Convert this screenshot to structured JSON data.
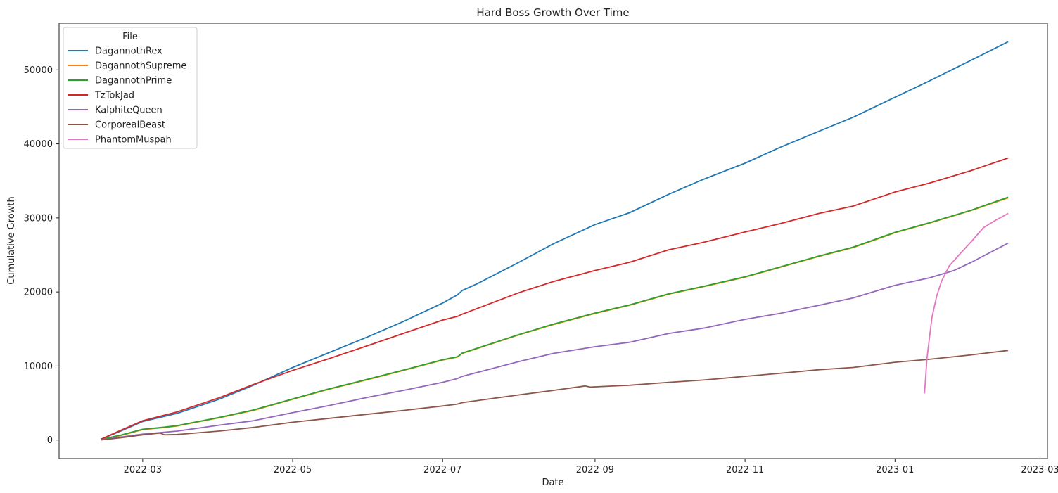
{
  "chart_data": {
    "type": "line",
    "title": "Hard Boss Growth Over Time",
    "xlabel": "Date",
    "ylabel": "Cumulative Growth",
    "x_type": "date",
    "xlim": [
      "2022-01-26",
      "2023-03-04"
    ],
    "ylim": [
      -2500,
      56300
    ],
    "x_ticks": [
      "2022-03-01",
      "2022-05-01",
      "2022-07-01",
      "2022-09-01",
      "2022-11-01",
      "2023-01-01",
      "2023-03-01"
    ],
    "x_tick_labels": [
      "2022-03",
      "2022-05",
      "2022-07",
      "2022-09",
      "2022-11",
      "2023-01",
      "2023-03"
    ],
    "y_ticks": [
      0,
      10000,
      20000,
      30000,
      40000,
      50000
    ],
    "y_tick_labels": [
      "0",
      "10000",
      "20000",
      "30000",
      "40000",
      "50000"
    ],
    "grid": false,
    "legend": {
      "title": "File",
      "position": "top-left"
    },
    "series": [
      {
        "name": "DagannothRex",
        "color": "#1f77b4",
        "points": [
          [
            "2022-02-12",
            100
          ],
          [
            "2022-02-20",
            1200
          ],
          [
            "2022-03-01",
            2500
          ],
          [
            "2022-03-15",
            3600
          ],
          [
            "2022-04-01",
            5500
          ],
          [
            "2022-04-15",
            7400
          ],
          [
            "2022-05-01",
            9800
          ],
          [
            "2022-05-15",
            11700
          ],
          [
            "2022-06-01",
            14000
          ],
          [
            "2022-06-15",
            16000
          ],
          [
            "2022-07-01",
            18500
          ],
          [
            "2022-07-07",
            19600
          ],
          [
            "2022-07-09",
            20200
          ],
          [
            "2022-07-15",
            21100
          ],
          [
            "2022-08-01",
            24000
          ],
          [
            "2022-08-15",
            26500
          ],
          [
            "2022-09-01",
            29100
          ],
          [
            "2022-09-15",
            30700
          ],
          [
            "2022-10-01",
            33200
          ],
          [
            "2022-10-15",
            35200
          ],
          [
            "2022-11-01",
            37400
          ],
          [
            "2022-11-15",
            39500
          ],
          [
            "2022-12-01",
            41700
          ],
          [
            "2022-12-15",
            43600
          ],
          [
            "2023-01-01",
            46300
          ],
          [
            "2023-01-15",
            48500
          ],
          [
            "2023-02-01",
            51300
          ],
          [
            "2023-02-16",
            53800
          ]
        ]
      },
      {
        "name": "DagannothSupreme",
        "color": "#ff7f0e",
        "points": [
          [
            "2022-02-12",
            50
          ],
          [
            "2022-02-20",
            600
          ],
          [
            "2022-03-01",
            1400
          ],
          [
            "2022-03-10",
            1700
          ],
          [
            "2022-03-15",
            1900
          ],
          [
            "2022-04-01",
            3000
          ],
          [
            "2022-04-15",
            4000
          ],
          [
            "2022-05-01",
            5500
          ],
          [
            "2022-05-15",
            6800
          ],
          [
            "2022-06-01",
            8200
          ],
          [
            "2022-06-15",
            9400
          ],
          [
            "2022-07-01",
            10800
          ],
          [
            "2022-07-07",
            11200
          ],
          [
            "2022-07-09",
            11700
          ],
          [
            "2022-08-01",
            14200
          ],
          [
            "2022-08-15",
            15600
          ],
          [
            "2022-09-01",
            17100
          ],
          [
            "2022-09-15",
            18200
          ],
          [
            "2022-10-01",
            19700
          ],
          [
            "2022-10-15",
            20700
          ],
          [
            "2022-11-01",
            22000
          ],
          [
            "2022-11-15",
            23300
          ],
          [
            "2022-12-01",
            24800
          ],
          [
            "2022-12-15",
            26000
          ],
          [
            "2023-01-01",
            28000
          ],
          [
            "2023-01-15",
            29300
          ],
          [
            "2023-02-01",
            31000
          ],
          [
            "2023-02-16",
            32700
          ]
        ]
      },
      {
        "name": "DagannothPrime",
        "color": "#2ca02c",
        "points": [
          [
            "2022-02-12",
            80
          ],
          [
            "2022-02-20",
            650
          ],
          [
            "2022-03-01",
            1450
          ],
          [
            "2022-03-10",
            1750
          ],
          [
            "2022-03-15",
            1950
          ],
          [
            "2022-04-01",
            3050
          ],
          [
            "2022-04-15",
            4050
          ],
          [
            "2022-05-01",
            5550
          ],
          [
            "2022-05-15",
            6850
          ],
          [
            "2022-06-01",
            8250
          ],
          [
            "2022-06-15",
            9450
          ],
          [
            "2022-07-01",
            10850
          ],
          [
            "2022-07-07",
            11250
          ],
          [
            "2022-07-09",
            11750
          ],
          [
            "2022-08-01",
            14250
          ],
          [
            "2022-08-15",
            15650
          ],
          [
            "2022-09-01",
            17150
          ],
          [
            "2022-09-15",
            18250
          ],
          [
            "2022-10-01",
            19750
          ],
          [
            "2022-10-15",
            20750
          ],
          [
            "2022-11-01",
            22050
          ],
          [
            "2022-11-15",
            23350
          ],
          [
            "2022-12-01",
            24850
          ],
          [
            "2022-12-15",
            26050
          ],
          [
            "2023-01-01",
            28050
          ],
          [
            "2023-01-15",
            29350
          ],
          [
            "2023-02-01",
            31050
          ],
          [
            "2023-02-16",
            32800
          ]
        ]
      },
      {
        "name": "TzTokJad",
        "color": "#d62728",
        "points": [
          [
            "2022-02-12",
            100
          ],
          [
            "2022-02-20",
            1300
          ],
          [
            "2022-03-01",
            2600
          ],
          [
            "2022-03-15",
            3800
          ],
          [
            "2022-04-01",
            5700
          ],
          [
            "2022-04-15",
            7500
          ],
          [
            "2022-05-01",
            9400
          ],
          [
            "2022-05-15",
            10900
          ],
          [
            "2022-06-01",
            12800
          ],
          [
            "2022-06-15",
            14400
          ],
          [
            "2022-07-01",
            16200
          ],
          [
            "2022-07-07",
            16700
          ],
          [
            "2022-07-09",
            17000
          ],
          [
            "2022-08-01",
            19900
          ],
          [
            "2022-08-15",
            21400
          ],
          [
            "2022-09-01",
            22900
          ],
          [
            "2022-09-15",
            24000
          ],
          [
            "2022-10-01",
            25700
          ],
          [
            "2022-10-15",
            26700
          ],
          [
            "2022-11-01",
            28100
          ],
          [
            "2022-11-15",
            29200
          ],
          [
            "2022-12-01",
            30600
          ],
          [
            "2022-12-15",
            31600
          ],
          [
            "2023-01-01",
            33500
          ],
          [
            "2023-01-15",
            34700
          ],
          [
            "2023-02-01",
            36400
          ],
          [
            "2023-02-16",
            38100
          ]
        ]
      },
      {
        "name": "KalphiteQueen",
        "color": "#9467bd",
        "points": [
          [
            "2022-02-12",
            30
          ],
          [
            "2022-02-20",
            400
          ],
          [
            "2022-03-01",
            800
          ],
          [
            "2022-03-15",
            1200
          ],
          [
            "2022-04-01",
            2000
          ],
          [
            "2022-04-15",
            2600
          ],
          [
            "2022-05-01",
            3700
          ],
          [
            "2022-05-15",
            4600
          ],
          [
            "2022-06-01",
            5800
          ],
          [
            "2022-06-15",
            6700
          ],
          [
            "2022-07-01",
            7800
          ],
          [
            "2022-07-07",
            8300
          ],
          [
            "2022-07-09",
            8600
          ],
          [
            "2022-08-01",
            10600
          ],
          [
            "2022-08-15",
            11700
          ],
          [
            "2022-09-01",
            12600
          ],
          [
            "2022-09-15",
            13200
          ],
          [
            "2022-10-01",
            14400
          ],
          [
            "2022-10-15",
            15100
          ],
          [
            "2022-11-01",
            16300
          ],
          [
            "2022-11-15",
            17100
          ],
          [
            "2022-12-01",
            18200
          ],
          [
            "2022-12-15",
            19200
          ],
          [
            "2023-01-01",
            20900
          ],
          [
            "2023-01-15",
            21900
          ],
          [
            "2023-01-25",
            22900
          ],
          [
            "2023-02-01",
            24000
          ],
          [
            "2023-02-16",
            26600
          ]
        ]
      },
      {
        "name": "CorporealBeast",
        "color": "#8c564b",
        "points": [
          [
            "2022-02-12",
            10
          ],
          [
            "2022-02-20",
            300
          ],
          [
            "2022-03-01",
            700
          ],
          [
            "2022-03-08",
            950
          ],
          [
            "2022-03-10",
            700
          ],
          [
            "2022-03-15",
            750
          ],
          [
            "2022-04-01",
            1200
          ],
          [
            "2022-04-15",
            1700
          ],
          [
            "2022-05-01",
            2400
          ],
          [
            "2022-05-15",
            2900
          ],
          [
            "2022-06-01",
            3500
          ],
          [
            "2022-06-15",
            4000
          ],
          [
            "2022-07-01",
            4600
          ],
          [
            "2022-07-07",
            4850
          ],
          [
            "2022-07-09",
            5050
          ],
          [
            "2022-08-01",
            6100
          ],
          [
            "2022-08-15",
            6700
          ],
          [
            "2022-08-28",
            7300
          ],
          [
            "2022-08-30",
            7150
          ],
          [
            "2022-09-15",
            7400
          ],
          [
            "2022-10-01",
            7800
          ],
          [
            "2022-10-15",
            8100
          ],
          [
            "2022-11-01",
            8600
          ],
          [
            "2022-11-15",
            9000
          ],
          [
            "2022-12-01",
            9500
          ],
          [
            "2022-12-15",
            9800
          ],
          [
            "2023-01-01",
            10500
          ],
          [
            "2023-01-15",
            10900
          ],
          [
            "2023-02-01",
            11500
          ],
          [
            "2023-02-16",
            12100
          ]
        ]
      },
      {
        "name": "PhantomMuspah",
        "color": "#e377c2",
        "points": [
          [
            "2023-01-13",
            6300
          ],
          [
            "2023-01-14",
            11000
          ],
          [
            "2023-01-16",
            16500
          ],
          [
            "2023-01-18",
            19500
          ],
          [
            "2023-01-20",
            21500
          ],
          [
            "2023-01-23",
            23500
          ],
          [
            "2023-01-27",
            25000
          ],
          [
            "2023-02-01",
            26800
          ],
          [
            "2023-02-06",
            28700
          ],
          [
            "2023-02-11",
            29700
          ],
          [
            "2023-02-16",
            30600
          ]
        ]
      }
    ]
  }
}
